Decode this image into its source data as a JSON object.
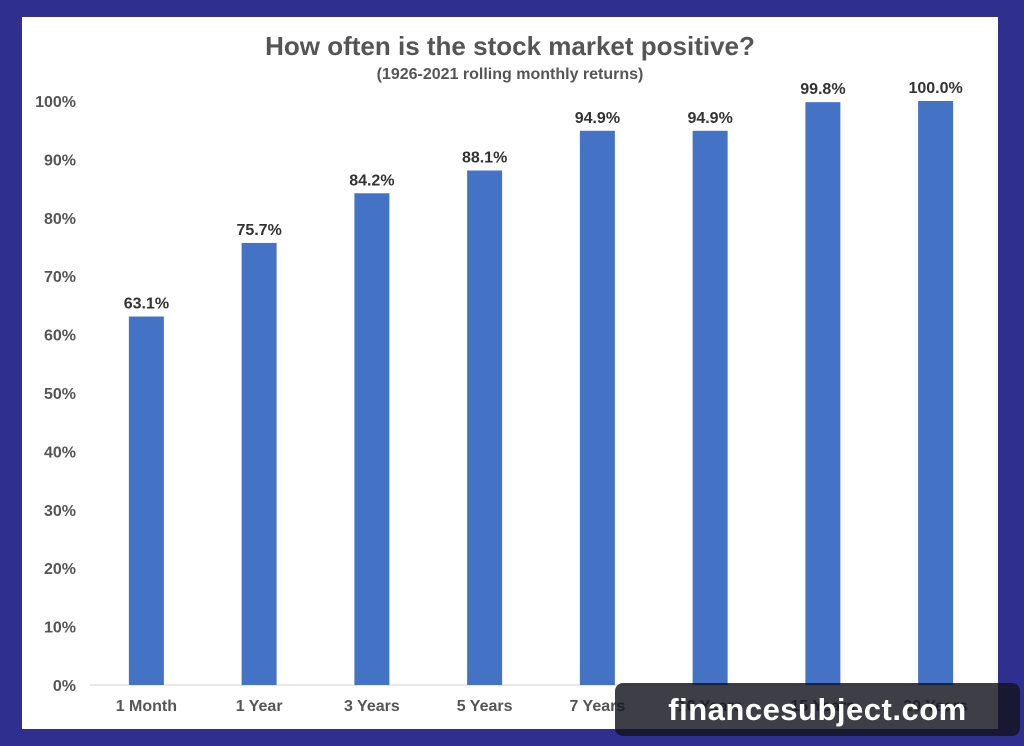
{
  "chart_data": {
    "type": "bar",
    "title": "How often is the stock market positive?",
    "subtitle": "(1926-2021 rolling monthly returns)",
    "categories": [
      "1 Month",
      "1 Year",
      "3 Years",
      "5 Years",
      "7 Years",
      "10 Years",
      "15 Years",
      "20 Years"
    ],
    "values": [
      63.1,
      75.7,
      84.2,
      88.1,
      94.9,
      94.9,
      99.8,
      100.0
    ],
    "data_labels": [
      "63.1%",
      "75.7%",
      "84.2%",
      "88.1%",
      "94.9%",
      "94.9%",
      "99.8%",
      "100.0%"
    ],
    "y_ticks": [
      0,
      10,
      20,
      30,
      40,
      50,
      60,
      70,
      80,
      90,
      100
    ],
    "y_tick_labels": [
      "0%",
      "10%",
      "20%",
      "30%",
      "40%",
      "50%",
      "60%",
      "70%",
      "80%",
      "90%",
      "100%"
    ],
    "ylim": [
      0,
      100
    ],
    "grid": false,
    "legend": "none",
    "bar_color": "#4472c4"
  },
  "watermark": {
    "text": "financesubject.com"
  },
  "colors": {
    "background": "#2e2f8f",
    "panel": "#ffffff"
  }
}
